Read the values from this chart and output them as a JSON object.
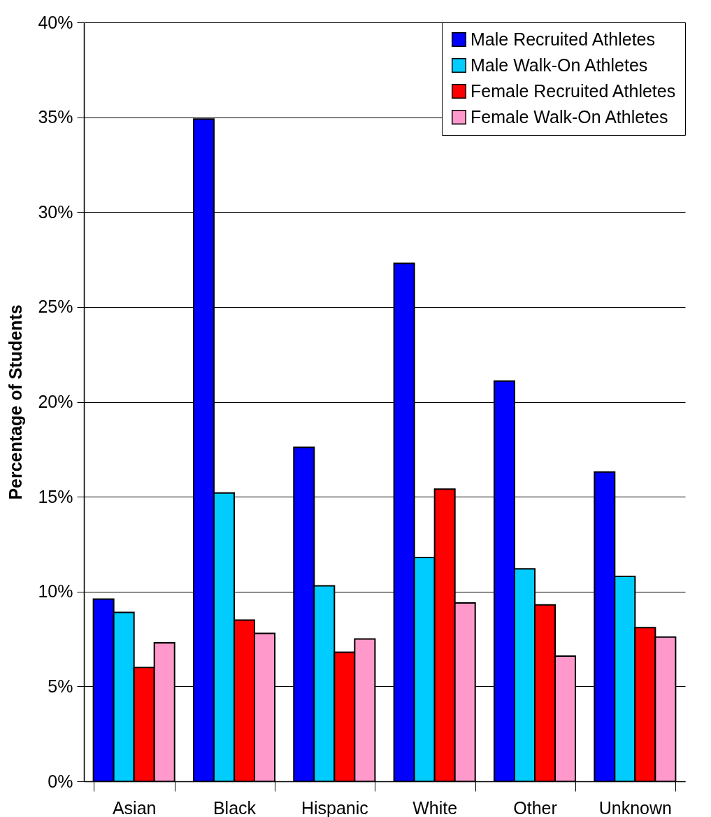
{
  "chart_data": {
    "type": "bar",
    "ylabel": "Percentage of Students",
    "categories": [
      "Asian",
      "Black",
      "Hispanic",
      "White",
      "Other",
      "Unknown"
    ],
    "series": [
      {
        "name": "Male Recruited Athletes",
        "color": "#0000ff",
        "values": [
          9.6,
          34.9,
          17.6,
          27.3,
          21.1,
          16.3
        ]
      },
      {
        "name": "Male Walk-On Athletes",
        "color": "#00ccff",
        "values": [
          8.9,
          15.2,
          10.3,
          11.8,
          11.2,
          10.8
        ]
      },
      {
        "name": "Female Recruited Athletes",
        "color": "#ff0000",
        "values": [
          6.0,
          8.5,
          6.8,
          15.4,
          9.3,
          8.1
        ]
      },
      {
        "name": "Female Walk-On Athletes",
        "color": "#ff99cc",
        "values": [
          7.3,
          7.8,
          7.5,
          9.4,
          6.6,
          7.6
        ]
      }
    ],
    "ylim": [
      0,
      40
    ],
    "yticks": [
      {
        "value": 0,
        "label": "0%"
      },
      {
        "value": 5,
        "label": "5%"
      },
      {
        "value": 10,
        "label": "10%"
      },
      {
        "value": 15,
        "label": "15%"
      },
      {
        "value": 20,
        "label": "20%"
      },
      {
        "value": 25,
        "label": "25%"
      },
      {
        "value": 30,
        "label": "30%"
      },
      {
        "value": 35,
        "label": "35%"
      },
      {
        "value": 40,
        "label": "40%"
      }
    ],
    "grid": "y",
    "legend": "top right"
  }
}
